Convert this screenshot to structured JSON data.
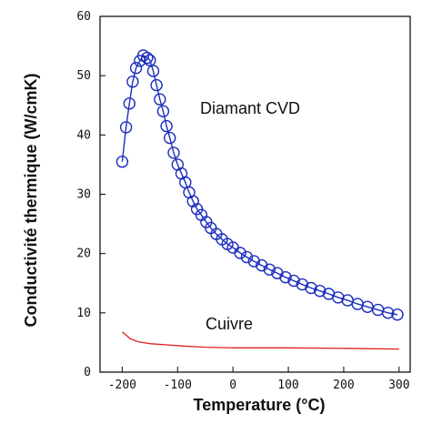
{
  "chart_data": {
    "type": "line",
    "title": "",
    "xlabel": "Temperature (°C)",
    "ylabel": "Conductivité thermique (W/cmK)",
    "xlim": [
      -240,
      320
    ],
    "ylim": [
      0,
      60
    ],
    "x_ticks": [
      -200,
      -100,
      0,
      100,
      200,
      300
    ],
    "x_tick_labels": [
      "-200",
      "-100",
      "0",
      "100",
      "200",
      "300"
    ],
    "y_ticks": [
      0,
      10,
      20,
      30,
      40,
      50,
      60
    ],
    "y_tick_labels": [
      "0",
      "10",
      "20",
      "30",
      "40",
      "50",
      "60"
    ],
    "grid": false,
    "legend": "none",
    "series": [
      {
        "name": "Diamant CVD",
        "color": "#1b2dbd",
        "marker": "circle",
        "points": [
          [
            -200,
            35.5
          ],
          [
            -193,
            41.3
          ],
          [
            -187,
            45.3
          ],
          [
            -181,
            49.0
          ],
          [
            -175,
            51.3
          ],
          [
            -168,
            52.5
          ],
          [
            -162,
            53.4
          ],
          [
            -155,
            53.0
          ],
          [
            -150,
            52.6
          ],
          [
            -144,
            50.8
          ],
          [
            -138,
            48.4
          ],
          [
            -132,
            46.0
          ],
          [
            -126,
            44.0
          ],
          [
            -120,
            41.5
          ],
          [
            -114,
            39.5
          ],
          [
            -107,
            37.0
          ],
          [
            -100,
            35.0
          ],
          [
            -93,
            33.5
          ],
          [
            -86,
            32.0
          ],
          [
            -79,
            30.3
          ],
          [
            -72,
            28.8
          ],
          [
            -65,
            27.5
          ],
          [
            -57,
            26.5
          ],
          [
            -48,
            25.3
          ],
          [
            -40,
            24.3
          ],
          [
            -30,
            23.3
          ],
          [
            -20,
            22.4
          ],
          [
            -10,
            21.6
          ],
          [
            0,
            21.0
          ],
          [
            13,
            20.1
          ],
          [
            25,
            19.4
          ],
          [
            38,
            18.7
          ],
          [
            52,
            18.0
          ],
          [
            66,
            17.3
          ],
          [
            80,
            16.7
          ],
          [
            95,
            16.0
          ],
          [
            110,
            15.4
          ],
          [
            125,
            14.8
          ],
          [
            141,
            14.2
          ],
          [
            157,
            13.7
          ],
          [
            173,
            13.2
          ],
          [
            190,
            12.6
          ],
          [
            207,
            12.1
          ],
          [
            225,
            11.5
          ],
          [
            243,
            11.0
          ],
          [
            262,
            10.5
          ],
          [
            280,
            10.0
          ],
          [
            297,
            9.7
          ]
        ]
      },
      {
        "name": "Cuivre",
        "color": "#e02020",
        "marker": "none",
        "points": [
          [
            -200,
            6.8
          ],
          [
            -185,
            5.6
          ],
          [
            -170,
            5.1
          ],
          [
            -150,
            4.8
          ],
          [
            -120,
            4.6
          ],
          [
            -90,
            4.4
          ],
          [
            -50,
            4.2
          ],
          [
            0,
            4.1
          ],
          [
            100,
            4.1
          ],
          [
            200,
            4.0
          ],
          [
            300,
            3.9
          ]
        ]
      }
    ]
  }
}
